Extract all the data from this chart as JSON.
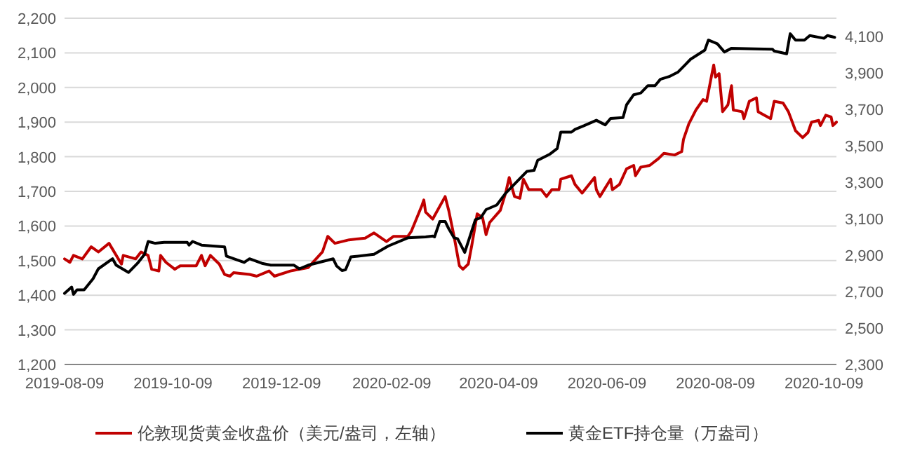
{
  "chart_data": {
    "type": "line",
    "xlim": [
      "2019-08-09",
      "2020-10-16"
    ],
    "xticks": [
      "2019-08-09",
      "2019-10-09",
      "2019-12-09",
      "2020-02-09",
      "2020-04-09",
      "2020-06-09",
      "2020-08-09",
      "2020-10-09"
    ],
    "ylim": [
      1200,
      2200
    ],
    "yticks": [
      {
        "value": 1200,
        "label": "1,200"
      },
      {
        "value": 1300,
        "label": "1,300"
      },
      {
        "value": 1400,
        "label": "1,400"
      },
      {
        "value": 1500,
        "label": "1,500"
      },
      {
        "value": 1600,
        "label": "1,600"
      },
      {
        "value": 1700,
        "label": "1,700"
      },
      {
        "value": 1800,
        "label": "1,800"
      },
      {
        "value": 1900,
        "label": "1,900"
      },
      {
        "value": 2000,
        "label": "2,000"
      },
      {
        "value": 2100,
        "label": "2,100"
      },
      {
        "value": 2200,
        "label": "2,200"
      }
    ],
    "y2lim": [
      2300,
      4200
    ],
    "y2ticks": [
      {
        "value": 2300,
        "label": "2,300"
      },
      {
        "value": 2500,
        "label": "2,500"
      },
      {
        "value": 2700,
        "label": "2,700"
      },
      {
        "value": 2900,
        "label": "2,900"
      },
      {
        "value": 3100,
        "label": "3,100"
      },
      {
        "value": 3300,
        "label": "3,300"
      },
      {
        "value": 3500,
        "label": "3,500"
      },
      {
        "value": 3700,
        "label": "3,700"
      },
      {
        "value": 3900,
        "label": "3,900"
      },
      {
        "value": 4100,
        "label": "4,100"
      }
    ],
    "grid": "y",
    "legend": "bottom",
    "marker": "none",
    "line_style": "solid",
    "series": [
      {
        "name": "伦敦现货黄金收盘价（美元/盎司，左轴）",
        "color": "#c00000",
        "x": [
          "2019-08-09",
          "2019-08-12",
          "2019-08-14",
          "2019-08-19",
          "2019-08-24",
          "2019-08-28",
          "2019-09-03",
          "2019-09-10",
          "2019-09-11",
          "2019-09-18",
          "2019-09-21",
          "2019-09-25",
          "2019-09-27",
          "2019-10-01",
          "2019-10-02",
          "2019-10-05",
          "2019-10-10",
          "2019-10-13",
          "2019-10-22",
          "2019-10-25",
          "2019-10-27",
          "2019-10-30",
          "2019-11-04",
          "2019-11-07",
          "2019-11-10",
          "2019-11-12",
          "2019-11-21",
          "2019-11-25",
          "2019-12-02",
          "2019-12-05",
          "2019-12-14",
          "2019-12-24",
          "2020-01-01",
          "2020-01-04",
          "2020-01-08",
          "2020-01-16",
          "2020-01-25",
          "2020-01-30",
          "2020-02-06",
          "2020-02-10",
          "2020-02-18",
          "2020-02-20",
          "2020-02-26",
          "2020-02-27",
          "2020-02-28",
          "2020-03-03",
          "2020-03-10",
          "2020-03-12",
          "2020-03-15",
          "2020-03-18",
          "2020-03-20",
          "2020-03-23",
          "2020-03-25",
          "2020-03-28",
          "2020-03-31",
          "2020-04-02",
          "2020-04-04",
          "2020-04-10",
          "2020-04-13",
          "2020-04-15",
          "2020-04-18",
          "2020-04-21",
          "2020-04-23",
          "2020-04-26",
          "2020-05-03",
          "2020-05-06",
          "2020-05-09",
          "2020-05-13",
          "2020-05-14",
          "2020-05-20",
          "2020-05-22",
          "2020-05-26",
          "2020-06-02",
          "2020-06-03",
          "2020-06-05",
          "2020-06-11",
          "2020-06-12",
          "2020-06-16",
          "2020-06-20",
          "2020-06-24",
          "2020-06-25",
          "2020-06-28",
          "2020-07-03",
          "2020-07-08",
          "2020-07-11",
          "2020-07-17",
          "2020-07-21",
          "2020-07-22",
          "2020-07-25",
          "2020-07-29",
          "2020-08-02",
          "2020-08-04",
          "2020-08-07",
          "2020-08-08",
          "2020-08-09",
          "2020-08-11",
          "2020-08-13",
          "2020-08-16",
          "2020-08-18",
          "2020-08-19",
          "2020-08-24",
          "2020-08-25",
          "2020-08-28",
          "2020-09-01",
          "2020-09-02",
          "2020-09-09",
          "2020-09-11",
          "2020-09-16",
          "2020-09-19",
          "2020-09-23",
          "2020-09-27",
          "2020-09-30",
          "2020-10-02",
          "2020-10-06",
          "2020-10-07",
          "2020-10-10",
          "2020-10-13",
          "2020-10-14",
          "2020-10-16"
        ],
        "values": [
          1505,
          1495,
          1515,
          1505,
          1540,
          1525,
          1550,
          1490,
          1515,
          1505,
          1525,
          1515,
          1475,
          1470,
          1515,
          1495,
          1475,
          1485,
          1485,
          1515,
          1485,
          1515,
          1490,
          1460,
          1455,
          1465,
          1460,
          1455,
          1470,
          1455,
          1470,
          1480,
          1525,
          1570,
          1550,
          1560,
          1565,
          1580,
          1555,
          1570,
          1570,
          1585,
          1660,
          1675,
          1640,
          1620,
          1685,
          1645,
          1570,
          1485,
          1475,
          1490,
          1545,
          1635,
          1625,
          1575,
          1610,
          1645,
          1695,
          1740,
          1685,
          1680,
          1735,
          1705,
          1705,
          1685,
          1705,
          1705,
          1735,
          1745,
          1720,
          1695,
          1740,
          1705,
          1685,
          1735,
          1705,
          1720,
          1765,
          1775,
          1745,
          1770,
          1775,
          1795,
          1810,
          1805,
          1815,
          1850,
          1895,
          1935,
          1965,
          1960,
          2040,
          2065,
          2030,
          2040,
          1930,
          1950,
          2005,
          1935,
          1930,
          1910,
          1960,
          1970,
          1930,
          1910,
          1960,
          1955,
          1930,
          1875,
          1855,
          1870,
          1900,
          1905,
          1890,
          1920,
          1915,
          1890,
          1900
        ]
      },
      {
        "name": "黄金ETF持仓量（万盎司）",
        "color": "#000000",
        "axis": "y2",
        "x": [
          "2019-08-09",
          "2019-08-13",
          "2019-08-14",
          "2019-08-16",
          "2019-08-20",
          "2019-08-25",
          "2019-08-28",
          "2019-09-05",
          "2019-09-07",
          "2019-09-14",
          "2019-09-19",
          "2019-09-23",
          "2019-09-25",
          "2019-09-29",
          "2019-10-04",
          "2019-10-17",
          "2019-10-18",
          "2019-10-20",
          "2019-10-25",
          "2019-11-07",
          "2019-11-08",
          "2019-11-18",
          "2019-11-21",
          "2019-11-28",
          "2019-12-03",
          "2019-12-16",
          "2019-12-19",
          "2019-12-24",
          "2020-01-07",
          "2020-01-09",
          "2020-01-12",
          "2020-01-14",
          "2020-01-17",
          "2020-01-30",
          "2020-02-07",
          "2020-02-18",
          "2020-02-28",
          "2020-03-03",
          "2020-03-04",
          "2020-03-07",
          "2020-03-10",
          "2020-03-12",
          "2020-03-15",
          "2020-03-17",
          "2020-03-21",
          "2020-03-27",
          "2020-03-30",
          "2020-04-02",
          "2020-04-08",
          "2020-04-13",
          "2020-04-20",
          "2020-04-25",
          "2020-04-29",
          "2020-05-01",
          "2020-05-08",
          "2020-05-12",
          "2020-05-14",
          "2020-05-20",
          "2020-05-22",
          "2020-05-27",
          "2020-06-03",
          "2020-06-08",
          "2020-06-11",
          "2020-06-18",
          "2020-06-20",
          "2020-06-24",
          "2020-06-28",
          "2020-07-02",
          "2020-07-06",
          "2020-07-09",
          "2020-07-14",
          "2020-07-19",
          "2020-07-23",
          "2020-07-26",
          "2020-07-30",
          "2020-08-03",
          "2020-08-05",
          "2020-08-10",
          "2020-08-14",
          "2020-08-18",
          "2020-09-10",
          "2020-09-11",
          "2020-09-18",
          "2020-09-20",
          "2020-09-23",
          "2020-09-28",
          "2020-10-01",
          "2020-10-09",
          "2020-10-11",
          "2020-10-15"
        ],
        "values": [
          2690,
          2725,
          2685,
          2710,
          2710,
          2770,
          2825,
          2880,
          2845,
          2805,
          2855,
          2905,
          2975,
          2965,
          2970,
          2970,
          2955,
          2975,
          2955,
          2945,
          2895,
          2860,
          2880,
          2855,
          2845,
          2845,
          2825,
          2845,
          2880,
          2840,
          2815,
          2820,
          2890,
          2905,
          2950,
          2995,
          3000,
          3005,
          3000,
          3085,
          3085,
          3045,
          2995,
          2990,
          2915,
          3095,
          3105,
          3150,
          3175,
          3240,
          3310,
          3360,
          3365,
          3420,
          3455,
          3485,
          3575,
          3575,
          3590,
          3610,
          3640,
          3615,
          3650,
          3655,
          3725,
          3780,
          3790,
          3830,
          3830,
          3865,
          3880,
          3905,
          3945,
          3975,
          4000,
          4025,
          4080,
          4060,
          4015,
          4035,
          4030,
          4020,
          4005,
          4115,
          4080,
          4080,
          4105,
          4090,
          4105,
          4095
        ]
      }
    ]
  }
}
